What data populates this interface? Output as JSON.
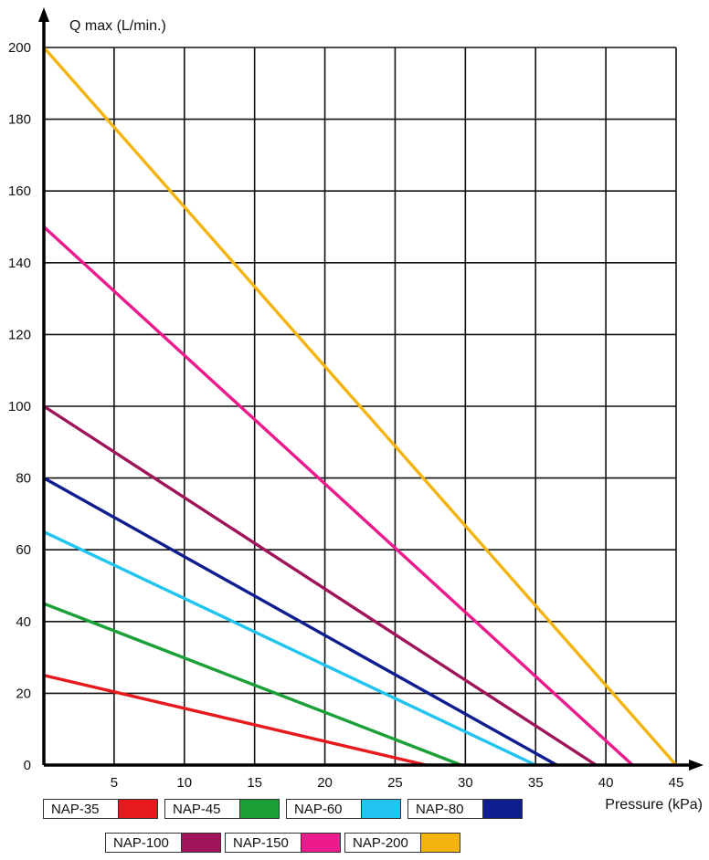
{
  "chart_data": {
    "type": "line",
    "xlabel": "Pressure (kPa)",
    "ylabel": "Q max (L/min.)",
    "xlim": [
      0,
      45
    ],
    "ylim": [
      0,
      200
    ],
    "x_ticks": [
      "5",
      "10",
      "15",
      "20",
      "25",
      "30",
      "35",
      "40",
      "45"
    ],
    "y_ticks": [
      "0",
      "20",
      "40",
      "60",
      "80",
      "100",
      "120",
      "140",
      "160",
      "180",
      "200"
    ],
    "grid": true,
    "legend_position": "bottom",
    "series": [
      {
        "name": "NAP-35",
        "color": "#e8191c",
        "x": [
          0,
          27.2
        ],
        "y": [
          25,
          0
        ]
      },
      {
        "name": "NAP-45",
        "color": "#1aa036",
        "x": [
          0,
          29.7
        ],
        "y": [
          45,
          0
        ]
      },
      {
        "name": "NAP-60",
        "color": "#21c4ef",
        "x": [
          0,
          35.0
        ],
        "y": [
          65,
          0
        ]
      },
      {
        "name": "NAP-80",
        "color": "#0f1e8f",
        "x": [
          0,
          36.5
        ],
        "y": [
          80,
          0
        ]
      },
      {
        "name": "NAP-100",
        "color": "#a0145a",
        "x": [
          0,
          39.3
        ],
        "y": [
          100,
          0
        ]
      },
      {
        "name": "NAP-150",
        "color": "#ec1a8c",
        "x": [
          0,
          41.9
        ],
        "y": [
          150,
          0
        ]
      },
      {
        "name": "NAP-200",
        "color": "#f4b410",
        "x": [
          0,
          45.0
        ],
        "y": [
          200,
          0
        ]
      }
    ]
  }
}
